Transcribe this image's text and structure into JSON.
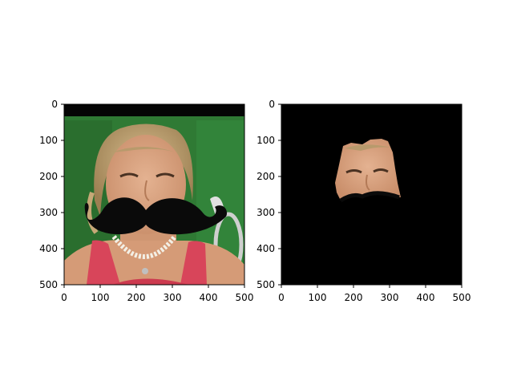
{
  "figure": {
    "background_color": "#ffffff",
    "panels": [
      {
        "name": "original-with-mustache",
        "content": "photo of a young woman with blonde hair tied back on a green background, wearing a red top and a white bead necklace, with a large black cartoon mustache overlaid across the lower face",
        "xlim": [
          0,
          500
        ],
        "ylim": [
          0,
          500
        ],
        "xticks": [
          "0",
          "100",
          "200",
          "300",
          "400",
          "500"
        ],
        "yticks": [
          "0",
          "100",
          "200",
          "300",
          "400",
          "500"
        ],
        "colors": {
          "background_green": "#2f7a34",
          "top_bar": "#050505",
          "mustache": "#0a0a0a",
          "shirt": "#d8455a",
          "hair": "#b89a6c",
          "skin": "#d8a27e"
        }
      },
      {
        "name": "face-mask-extracted",
        "content": "black canvas with only the segmented face region of the woman visible (forehead, eyes, nose), cut off at the top edge of the mustache",
        "xlim": [
          0,
          500
        ],
        "ylim": [
          0,
          500
        ],
        "xticks": [
          "0",
          "100",
          "200",
          "300",
          "400",
          "500"
        ],
        "yticks": [
          "0",
          "100",
          "200",
          "300",
          "400",
          "500"
        ],
        "colors": {
          "background": "#000000",
          "skin": "#d5a07a"
        }
      }
    ]
  }
}
